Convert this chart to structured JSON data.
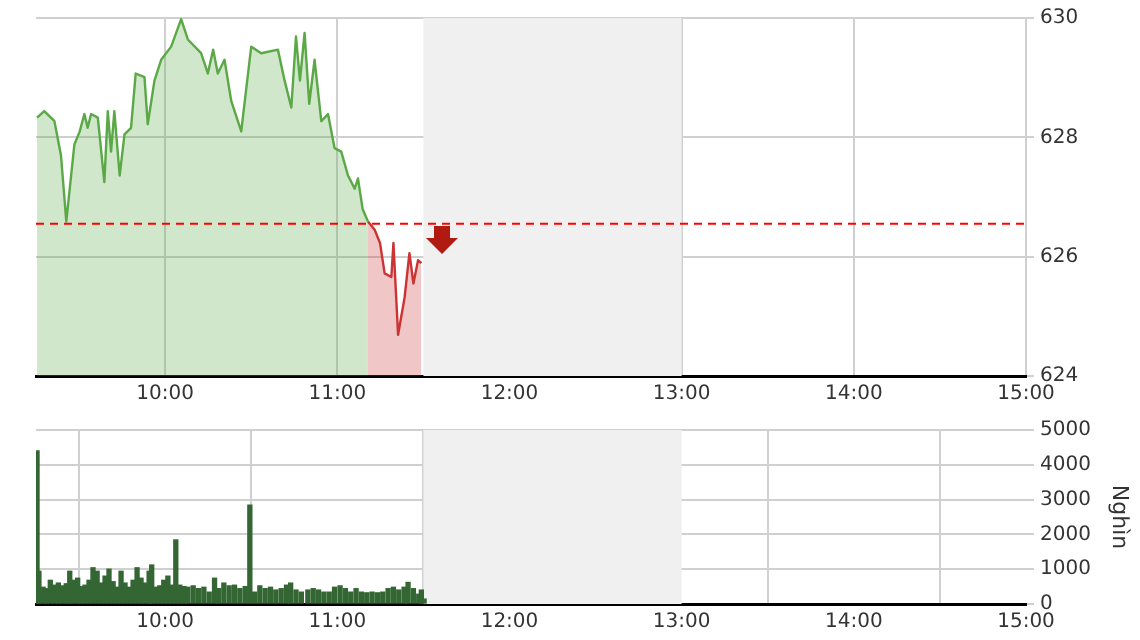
{
  "chart_data": [
    {
      "type": "area",
      "xlim": [
        9.25,
        15
      ],
      "xticks": [
        {
          "value": 10,
          "label": "10:00"
        },
        {
          "value": 11,
          "label": "11:00"
        },
        {
          "value": 12,
          "label": "12:00"
        },
        {
          "value": 13,
          "label": "13:00"
        },
        {
          "value": 14,
          "label": "14:00"
        },
        {
          "value": 15,
          "label": "15:00"
        }
      ],
      "ylim": [
        624,
        630
      ],
      "yticks": [
        624,
        626,
        628,
        630
      ],
      "grid": true,
      "legend": false,
      "marker": "none",
      "bands": [
        {
          "axis": "x",
          "from": 11.5,
          "to": 13,
          "color": "#f0f0f0"
        }
      ],
      "ref_lines": [
        {
          "axis": "y",
          "value": 626.55,
          "color": "#ff0000",
          "line_style": "dashed"
        }
      ],
      "series": [
        {
          "color": "#5aa846",
          "x": [
            9.256,
            9.298,
            9.357,
            9.395,
            9.426,
            9.473,
            9.504,
            9.531,
            9.55,
            9.57,
            9.609,
            9.647,
            9.667,
            9.686,
            9.705,
            9.736,
            9.764,
            9.802,
            9.829,
            9.88,
            9.899,
            9.938,
            9.977,
            10.035,
            10.093,
            10.132,
            10.209,
            10.248,
            10.279,
            10.306,
            10.345,
            10.384,
            10.442,
            10.5,
            10.558,
            10.655,
            10.694,
            10.733,
            10.76,
            10.783,
            10.81,
            10.837,
            10.868,
            10.907,
            10.946,
            10.984,
            11.023,
            11.062,
            11.101,
            11.12,
            11.147,
            11.178
          ],
          "values": [
            628.33,
            628.44,
            628.27,
            627.7,
            626.59,
            627.88,
            628.1,
            628.39,
            628.16,
            628.39,
            628.33,
            627.25,
            628.44,
            627.76,
            628.44,
            627.36,
            628.05,
            628.16,
            629.07,
            629.01,
            628.22,
            628.95,
            629.3,
            629.52,
            629.98,
            629.64,
            629.41,
            629.07,
            629.47,
            629.07,
            629.3,
            628.61,
            628.1,
            629.52,
            629.41,
            629.47,
            628.95,
            628.5,
            629.69,
            628.95,
            629.75,
            628.56,
            629.3,
            628.27,
            628.39,
            627.82,
            627.76,
            627.36,
            627.14,
            627.31,
            626.8,
            626.59
          ]
        },
        {
          "color": "#cc3333",
          "x": [
            11.178,
            11.217,
            11.248,
            11.275,
            11.314,
            11.326,
            11.353,
            11.391,
            11.419,
            11.442,
            11.469,
            11.488
          ],
          "values": [
            626.59,
            626.45,
            626.23,
            625.72,
            625.66,
            626.23,
            624.69,
            625.32,
            626.06,
            625.55,
            625.94,
            625.89
          ]
        }
      ]
    },
    {
      "type": "bar",
      "ylabel": "Nghìn",
      "xlim": [
        9.25,
        15
      ],
      "xticks": [
        {
          "value": 10,
          "label": "10:00"
        },
        {
          "value": 11,
          "label": "11:00"
        },
        {
          "value": 12,
          "label": "12:00"
        },
        {
          "value": 13,
          "label": "13:00"
        },
        {
          "value": 14,
          "label": "14:00"
        },
        {
          "value": 15,
          "label": "15:00"
        }
      ],
      "ylim": [
        0,
        5000
      ],
      "yticks": [
        0,
        1000,
        2000,
        3000,
        4000,
        5000
      ],
      "grid": true,
      "legend": false,
      "bands": [
        {
          "axis": "x",
          "from": 11.5,
          "to": 13,
          "color": "#f0f0f0"
        }
      ],
      "series": [
        {
          "color": "#336633",
          "x": [
            9.256,
            9.267,
            9.291,
            9.31,
            9.333,
            9.357,
            9.38,
            9.403,
            9.426,
            9.446,
            9.465,
            9.492,
            9.512,
            9.535,
            9.558,
            9.581,
            9.605,
            9.628,
            9.651,
            9.674,
            9.698,
            9.721,
            9.744,
            9.767,
            9.791,
            9.814,
            9.837,
            9.86,
            9.884,
            9.907,
            9.922,
            9.946,
            9.969,
            9.992,
            10.016,
            10.039,
            10.062,
            10.085,
            10.109,
            10.132,
            10.163,
            10.194,
            10.225,
            10.256,
            10.287,
            10.31,
            10.341,
            10.372,
            10.403,
            10.434,
            10.465,
            10.492,
            10.519,
            10.55,
            10.581,
            10.612,
            10.643,
            10.674,
            10.705,
            10.729,
            10.76,
            10.791,
            10.829,
            10.86,
            10.891,
            10.922,
            10.953,
            10.984,
            11.016,
            11.047,
            11.078,
            11.109,
            11.14,
            11.171,
            11.202,
            11.233,
            11.264,
            11.295,
            11.326,
            11.357,
            11.388,
            11.411,
            11.442,
            11.473,
            11.488,
            11.504
          ],
          "values": [
            4400,
            940,
            480,
            440,
            680,
            540,
            600,
            520,
            580,
            940,
            680,
            740,
            500,
            540,
            680,
            1040,
            940,
            600,
            800,
            1000,
            640,
            480,
            940,
            600,
            480,
            680,
            1040,
            740,
            600,
            940,
            1120,
            480,
            520,
            680,
            800,
            540,
            1840,
            540,
            500,
            480,
            520,
            440,
            480,
            340,
            740,
            440,
            600,
            520,
            540,
            440,
            500,
            2840,
            340,
            520,
            440,
            480,
            400,
            440,
            540,
            600,
            400,
            340,
            400,
            440,
            400,
            340,
            340,
            480,
            520,
            440,
            340,
            440,
            340,
            320,
            340,
            320,
            340,
            440,
            480,
            400,
            480,
            620,
            440,
            280,
            400,
            140
          ]
        }
      ]
    }
  ]
}
